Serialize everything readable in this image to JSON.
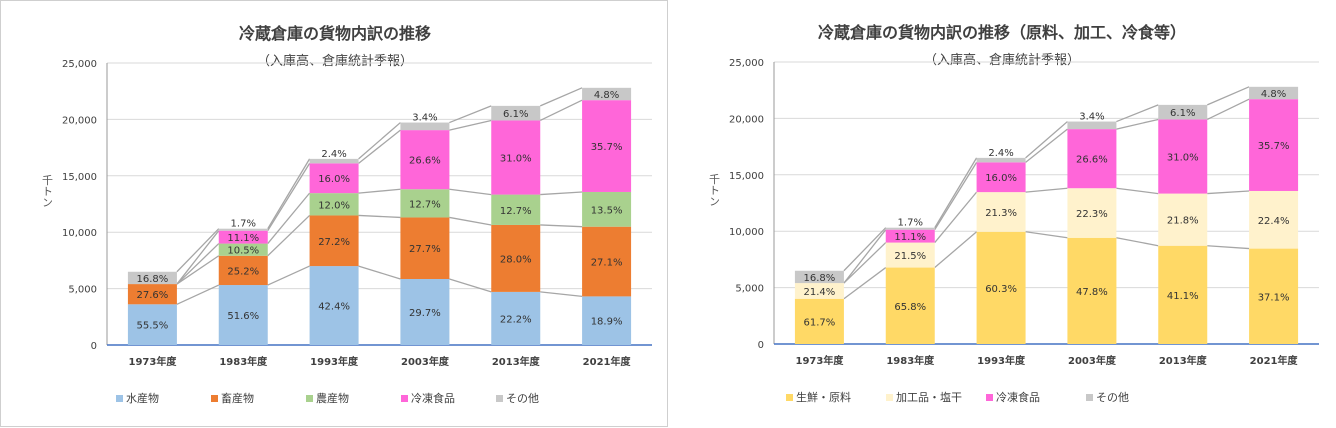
{
  "chart_data": [
    {
      "type": "bar",
      "stacked": true,
      "title": "冷蔵倉庫の貨物内訳の推移",
      "subtitle": "（入庫高、倉庫統計季報）",
      "ylabel": "千トン",
      "ylim": [
        0,
        25000
      ],
      "yticks": [
        "0",
        "5,000",
        "10,000",
        "15,000",
        "20,000",
        "25,000"
      ],
      "grid": true,
      "legend_position": "bottom",
      "categories": [
        "1973年度",
        "1983年度",
        "1993年度",
        "2003年度",
        "2013年度",
        "2021年度"
      ],
      "totals": [
        6500,
        10300,
        16500,
        19700,
        21200,
        22800
      ],
      "series": [
        {
          "name": "水産物",
          "color": "#9dc3e6",
          "shares": [
            55.5,
            51.6,
            42.4,
            29.7,
            22.2,
            18.9
          ],
          "labels": [
            "55.5%",
            "51.6%",
            "42.4%",
            "29.7%",
            "22.2%",
            "18.9%"
          ]
        },
        {
          "name": "畜産物",
          "color": "#ed7d31",
          "shares": [
            27.6,
            25.2,
            27.2,
            27.7,
            28.0,
            27.1
          ],
          "labels": [
            "27.6%",
            "25.2%",
            "27.2%",
            "27.7%",
            "28.0%",
            "27.1%"
          ]
        },
        {
          "name": "農産物",
          "color": "#a9d18e",
          "shares": [
            0,
            10.5,
            12.0,
            12.7,
            12.7,
            13.5
          ],
          "labels": [
            "",
            "10.5%",
            "12.0%",
            "12.7%",
            "12.7%",
            "13.5%"
          ]
        },
        {
          "name": "冷凍食品",
          "color": "#ff66d9",
          "shares": [
            0,
            11.1,
            16.0,
            26.6,
            31.0,
            35.7
          ],
          "labels": [
            "",
            "11.1%",
            "16.0%",
            "26.6%",
            "31.0%",
            "35.7%"
          ]
        },
        {
          "name": "その他",
          "color": "#c8c8c8",
          "shares": [
            16.8,
            1.7,
            2.4,
            3.4,
            6.1,
            4.8
          ],
          "labels": [
            "16.8%",
            "1.7%",
            "2.4%",
            "3.4%",
            "6.1%",
            "4.8%"
          ]
        }
      ]
    },
    {
      "type": "bar",
      "stacked": true,
      "title": "冷蔵倉庫の貨物内訳の推移（原料、加工、冷食等）",
      "subtitle": "（入庫高、倉庫統計季報）",
      "ylabel": "千トン",
      "ylim": [
        0,
        25000
      ],
      "yticks": [
        "0",
        "5,000",
        "10,000",
        "15,000",
        "20,000",
        "25,000"
      ],
      "grid": true,
      "legend_position": "bottom",
      "categories": [
        "1973年度",
        "1983年度",
        "1993年度",
        "2003年度",
        "2013年度",
        "2021年度"
      ],
      "totals": [
        6500,
        10300,
        16500,
        19700,
        21200,
        22800
      ],
      "series": [
        {
          "name": "生鮮・原料",
          "color": "#ffd966",
          "shares": [
            61.7,
            65.8,
            60.3,
            47.8,
            41.1,
            37.1
          ],
          "labels": [
            "61.7%",
            "65.8%",
            "60.3%",
            "47.8%",
            "41.1%",
            "37.1%"
          ]
        },
        {
          "name": "加工品・塩干",
          "color": "#fff2cc",
          "shares": [
            21.4,
            21.5,
            21.3,
            22.3,
            21.8,
            22.4
          ],
          "labels": [
            "21.4%",
            "21.5%",
            "21.3%",
            "22.3%",
            "21.8%",
            "22.4%"
          ]
        },
        {
          "name": "冷凍食品",
          "color": "#ff66d9",
          "shares": [
            0,
            11.1,
            16.0,
            26.6,
            31.0,
            35.7
          ],
          "labels": [
            "",
            "11.1%",
            "16.0%",
            "26.6%",
            "31.0%",
            "35.7%"
          ]
        },
        {
          "name": "その他",
          "color": "#c8c8c8",
          "shares": [
            16.8,
            1.7,
            2.4,
            3.4,
            6.1,
            4.8
          ],
          "labels": [
            "16.8%",
            "1.7%",
            "2.4%",
            "3.4%",
            "6.1%",
            "4.8%"
          ]
        }
      ]
    }
  ]
}
